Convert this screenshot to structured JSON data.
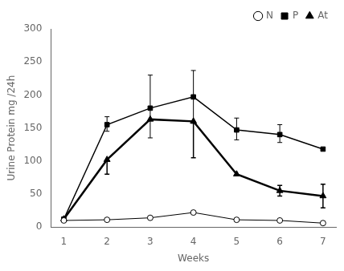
{
  "chart_data": {
    "type": "line",
    "x": [
      1,
      2,
      3,
      4,
      5,
      6,
      7
    ],
    "xlabel": "Weeks",
    "ylabel": "Urine Protein mg /24h",
    "xlim": [
      0.7,
      7.3
    ],
    "xticks": [
      1,
      2,
      3,
      4,
      5,
      6,
      7
    ],
    "ylim": [
      0,
      300
    ],
    "yticks": [
      0,
      50,
      100,
      150,
      200,
      250,
      300
    ],
    "grid": false,
    "legend": "upper right",
    "series": [
      {
        "name": "N",
        "color": "#000000",
        "marker": "circle",
        "line_style": "solid",
        "values": [
          10,
          11,
          14,
          22,
          11,
          10,
          6
        ],
        "error_lo": [
          0,
          0,
          0,
          0,
          0,
          0,
          0
        ],
        "error_hi": [
          0,
          0,
          0,
          0,
          0,
          0,
          0
        ]
      },
      {
        "name": "P",
        "color": "#000000",
        "marker": "square",
        "line_style": "solid",
        "values": [
          12,
          155,
          180,
          197,
          147,
          140,
          118
        ],
        "error_lo": [
          0,
          10,
          45,
          40,
          15,
          12,
          0
        ],
        "error_hi": [
          0,
          12,
          50,
          40,
          18,
          15,
          0
        ]
      },
      {
        "name": "At",
        "color": "#000000",
        "marker": "triangle",
        "line_style": "solid",
        "values": [
          12,
          102,
          163,
          160,
          80,
          55,
          47
        ],
        "error_lo": [
          0,
          22,
          0,
          55,
          0,
          8,
          18
        ],
        "error_hi": [
          0,
          0,
          0,
          0,
          0,
          8,
          18
        ]
      }
    ]
  }
}
